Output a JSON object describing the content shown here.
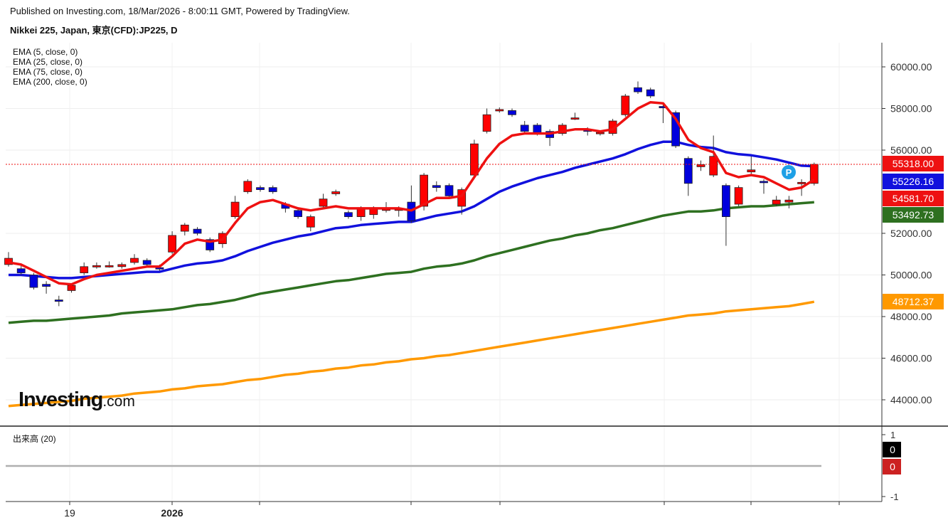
{
  "header": {
    "published": "Published on Investing.com, 18/Mar/2026 - 8:00:11 GMT, Powered by TradingView.",
    "symbol": "Nikkei 225, Japan, 東京(CFD):JP225, D"
  },
  "legend": [
    "EMA (5, close, 0)",
    "EMA (25, close, 0)",
    "EMA (75, close, 0)",
    "EMA (200, close, 0)"
  ],
  "volume": {
    "title": "出来高 (20)",
    "axis_ticks": [
      "1",
      "-1"
    ],
    "tags": [
      {
        "label": "0",
        "color": "#000000"
      },
      {
        "label": "0",
        "color": "#cc2222"
      }
    ]
  },
  "logo": {
    "brand": "Investing",
    "suffix": ".com"
  },
  "colors": {
    "up": "#ff0000",
    "down": "#0000dd",
    "ema5": "#ee1111",
    "ema25": "#1111dd",
    "ema75": "#2e7020",
    "ema200": "#ff9900"
  },
  "chart_data": {
    "type": "candlestick",
    "y_ticks": [
      "60000.00",
      "58000.00",
      "56000.00",
      "52000.00",
      "50000.00",
      "48000.00",
      "46000.00",
      "44000.00"
    ],
    "ylim": [
      43000,
      61000
    ],
    "x_labels": [
      "19",
      "2026"
    ],
    "price_tags": [
      {
        "label": "55318.00",
        "value": 55318,
        "color": "#ee1111"
      },
      {
        "label": "55226.16",
        "value": 55226.16,
        "color": "#1111dd"
      },
      {
        "label": "54581.70",
        "value": 54581.7,
        "color": "#ee1111"
      },
      {
        "label": "53492.73",
        "value": 53492.73,
        "color": "#2e7020"
      },
      {
        "label": "48712.37",
        "value": 48712.37,
        "color": "#ff9900"
      }
    ],
    "marker": "P",
    "candles": [
      {
        "o": 50500,
        "c": 50800,
        "h": 51100,
        "l": 50400
      },
      {
        "o": 50300,
        "c": 50100,
        "h": 50500,
        "l": 50000
      },
      {
        "o": 50000,
        "c": 49400,
        "h": 50100,
        "l": 49300
      },
      {
        "o": 49550,
        "c": 49450,
        "h": 49700,
        "l": 49100
      },
      {
        "o": 48800,
        "c": 48750,
        "h": 49000,
        "l": 48500
      },
      {
        "o": 49250,
        "c": 49500,
        "h": 49600,
        "l": 49150
      },
      {
        "o": 50100,
        "c": 50400,
        "h": 50600,
        "l": 50000
      },
      {
        "o": 50400,
        "c": 50450,
        "h": 50600,
        "l": 50300
      },
      {
        "o": 50400,
        "c": 50450,
        "h": 50650,
        "l": 50350
      },
      {
        "o": 50400,
        "c": 50500,
        "h": 50600,
        "l": 50300
      },
      {
        "o": 50600,
        "c": 50800,
        "h": 51000,
        "l": 50500
      },
      {
        "o": 50700,
        "c": 50500,
        "h": 50800,
        "l": 50400
      },
      {
        "o": 50350,
        "c": 50300,
        "h": 50500,
        "l": 50200
      },
      {
        "o": 51100,
        "c": 51900,
        "h": 52100,
        "l": 51000
      },
      {
        "o": 52100,
        "c": 52400,
        "h": 52500,
        "l": 51900
      },
      {
        "o": 52200,
        "c": 52000,
        "h": 52300,
        "l": 51900
      },
      {
        "o": 51700,
        "c": 51200,
        "h": 51800,
        "l": 51100
      },
      {
        "o": 51500,
        "c": 52000,
        "h": 52100,
        "l": 51300
      },
      {
        "o": 52800,
        "c": 53500,
        "h": 53800,
        "l": 52700
      },
      {
        "o": 54000,
        "c": 54500,
        "h": 54600,
        "l": 53900
      },
      {
        "o": 54200,
        "c": 54100,
        "h": 54300,
        "l": 54000
      },
      {
        "o": 54200,
        "c": 54000,
        "h": 54300,
        "l": 53900
      },
      {
        "o": 53400,
        "c": 53200,
        "h": 53500,
        "l": 53000
      },
      {
        "o": 53100,
        "c": 52800,
        "h": 53200,
        "l": 52700
      },
      {
        "o": 52300,
        "c": 52800,
        "h": 52900,
        "l": 52100
      },
      {
        "o": 53300,
        "c": 53650,
        "h": 53900,
        "l": 53200
      },
      {
        "o": 53900,
        "c": 54000,
        "h": 54100,
        "l": 53800
      },
      {
        "o": 53000,
        "c": 52800,
        "h": 53100,
        "l": 52700
      },
      {
        "o": 52800,
        "c": 53200,
        "h": 53300,
        "l": 52600
      },
      {
        "o": 52900,
        "c": 53200,
        "h": 53300,
        "l": 52700
      },
      {
        "o": 53100,
        "c": 53200,
        "h": 53500,
        "l": 53000
      },
      {
        "o": 53100,
        "c": 53200,
        "h": 53300,
        "l": 52800
      },
      {
        "o": 53500,
        "c": 52600,
        "h": 54300,
        "l": 52500
      },
      {
        "o": 53300,
        "c": 54800,
        "h": 54900,
        "l": 53100
      },
      {
        "o": 54300,
        "c": 54200,
        "h": 54500,
        "l": 54000
      },
      {
        "o": 54300,
        "c": 53800,
        "h": 54400,
        "l": 53700
      },
      {
        "o": 53300,
        "c": 54100,
        "h": 54200,
        "l": 52900
      },
      {
        "o": 54800,
        "c": 56300,
        "h": 56500,
        "l": 54700
      },
      {
        "o": 56900,
        "c": 57700,
        "h": 58000,
        "l": 56800
      },
      {
        "o": 57900,
        "c": 57950,
        "h": 58050,
        "l": 57800
      },
      {
        "o": 57900,
        "c": 57700,
        "h": 58000,
        "l": 57600
      },
      {
        "o": 57200,
        "c": 56900,
        "h": 57400,
        "l": 56800
      },
      {
        "o": 57200,
        "c": 56800,
        "h": 57300,
        "l": 56700
      },
      {
        "o": 56900,
        "c": 56600,
        "h": 57000,
        "l": 56200
      },
      {
        "o": 56800,
        "c": 57200,
        "h": 57300,
        "l": 56700
      },
      {
        "o": 57500,
        "c": 57550,
        "h": 57800,
        "l": 57450
      },
      {
        "o": 57000,
        "c": 56900,
        "h": 57100,
        "l": 56700
      },
      {
        "o": 56800,
        "c": 56850,
        "h": 56950,
        "l": 56700
      },
      {
        "o": 56800,
        "c": 57400,
        "h": 57500,
        "l": 56700
      },
      {
        "o": 57700,
        "c": 58600,
        "h": 58700,
        "l": 57600
      },
      {
        "o": 59000,
        "c": 58800,
        "h": 59300,
        "l": 58700
      },
      {
        "o": 58900,
        "c": 58600,
        "h": 59000,
        "l": 58500
      },
      {
        "o": 58100,
        "c": 58050,
        "h": 58300,
        "l": 57300
      },
      {
        "o": 57800,
        "c": 56200,
        "h": 57900,
        "l": 56100
      },
      {
        "o": 55600,
        "c": 54400,
        "h": 55700,
        "l": 53800
      },
      {
        "o": 55200,
        "c": 55300,
        "h": 55500,
        "l": 55000
      },
      {
        "o": 54800,
        "c": 55700,
        "h": 56700,
        "l": 54700
      },
      {
        "o": 54300,
        "c": 52800,
        "h": 54400,
        "l": 51400
      },
      {
        "o": 53400,
        "c": 54200,
        "h": 54300,
        "l": 53300
      },
      {
        "o": 54950,
        "c": 55050,
        "h": 55700,
        "l": 54800
      },
      {
        "o": 54500,
        "c": 54450,
        "h": 54600,
        "l": 53900
      },
      {
        "o": 53400,
        "c": 53600,
        "h": 53800,
        "l": 53300
      },
      {
        "o": 53500,
        "c": 53600,
        "h": 53800,
        "l": 53200
      },
      {
        "o": 54400,
        "c": 54450,
        "h": 54600,
        "l": 53800
      },
      {
        "o": 54400,
        "c": 55318,
        "h": 55400,
        "l": 54300
      }
    ],
    "ema5": [
      50600,
      50500,
      50200,
      49900,
      49600,
      49550,
      49800,
      50000,
      50100,
      50200,
      50300,
      50400,
      50400,
      50900,
      51500,
      51700,
      51600,
      51700,
      52500,
      53200,
      53500,
      53600,
      53400,
      53200,
      53100,
      53200,
      53300,
      53200,
      53200,
      53200,
      53200,
      53200,
      53100,
      53400,
      53700,
      53700,
      53800,
      54700,
      55600,
      56300,
      56700,
      56800,
      56800,
      56800,
      56900,
      57000,
      57000,
      56900,
      57000,
      57500,
      58000,
      58300,
      58250,
      57500,
      56500,
      56100,
      55900,
      54900,
      54700,
      54800,
      54700,
      54400,
      54100,
      54200,
      54581.7
    ],
    "ema25": [
      50000,
      50000,
      49950,
      49900,
      49850,
      49850,
      49900,
      49950,
      50000,
      50050,
      50100,
      50150,
      50150,
      50300,
      50450,
      50550,
      50600,
      50700,
      50900,
      51150,
      51350,
      51550,
      51700,
      51850,
      51950,
      52100,
      52250,
      52300,
      52400,
      52450,
      52500,
      52550,
      52550,
      52700,
      52850,
      52950,
      53050,
      53300,
      53650,
      54000,
      54250,
      54450,
      54650,
      54800,
      54950,
      55150,
      55300,
      55450,
      55600,
      55800,
      56050,
      56250,
      56400,
      56400,
      56250,
      56150,
      56100,
      55900,
      55800,
      55750,
      55650,
      55550,
      55400,
      55250,
      55226.16
    ],
    "ema75": [
      47700,
      47750,
      47800,
      47800,
      47850,
      47900,
      47950,
      48000,
      48050,
      48150,
      48200,
      48250,
      48300,
      48350,
      48450,
      48550,
      48600,
      48700,
      48800,
      48950,
      49100,
      49200,
      49300,
      49400,
      49500,
      49600,
      49700,
      49750,
      49850,
      49950,
      50050,
      50100,
      50150,
      50300,
      50400,
      50450,
      50550,
      50700,
      50900,
      51050,
      51200,
      51350,
      51500,
      51650,
      51750,
      51900,
      52000,
      52150,
      52250,
      52400,
      52550,
      52700,
      52850,
      52950,
      53050,
      53050,
      53100,
      53200,
      53250,
      53300,
      53300,
      53350,
      53400,
      53450,
      53492.73
    ],
    "ema200": [
      43700,
      43750,
      43800,
      43850,
      43900,
      43950,
      44050,
      44100,
      44150,
      44200,
      44300,
      44350,
      44400,
      44500,
      44550,
      44650,
      44700,
      44750,
      44850,
      44950,
      45000,
      45100,
      45200,
      45250,
      45350,
      45400,
      45500,
      45550,
      45650,
      45700,
      45800,
      45850,
      45950,
      46000,
      46100,
      46150,
      46250,
      46350,
      46450,
      46550,
      46650,
      46750,
      46850,
      46950,
      47050,
      47150,
      47250,
      47350,
      47450,
      47550,
      47650,
      47750,
      47850,
      47950,
      48050,
      48100,
      48150,
      48250,
      48300,
      48350,
      48400,
      48450,
      48500,
      48600,
      48712.37
    ]
  }
}
